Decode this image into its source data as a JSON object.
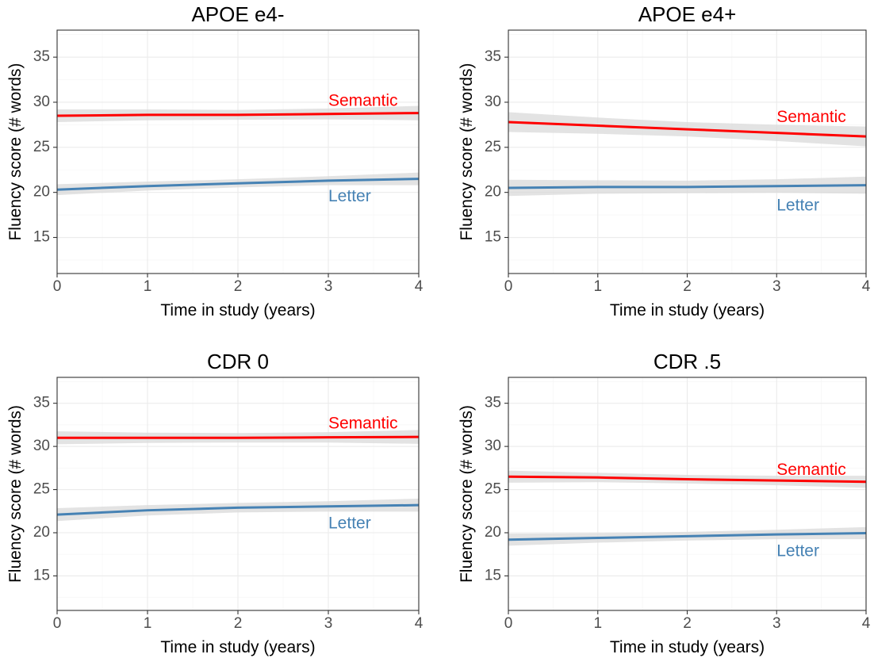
{
  "chart_data": [
    {
      "type": "line",
      "title": "APOE e4-",
      "xlabel": "Time in study (years)",
      "ylabel": "Fluency score (# words)",
      "xlim": [
        0,
        4
      ],
      "ylim": [
        11,
        38
      ],
      "xticks": [
        0,
        1,
        2,
        3,
        4
      ],
      "yticks": [
        15,
        20,
        25,
        30,
        35
      ],
      "grid": true,
      "x": [
        0,
        1,
        2,
        3,
        4
      ],
      "series": [
        {
          "name": "Semantic",
          "color": "#ff0000",
          "values": [
            28.5,
            28.6,
            28.6,
            28.7,
            28.8
          ],
          "ci_halfwidth": [
            0.7,
            0.6,
            0.55,
            0.6,
            0.8
          ],
          "label_at": [
            3.0,
            30.1
          ]
        },
        {
          "name": "Letter",
          "color": "#4682b4",
          "values": [
            20.3,
            20.7,
            21.0,
            21.3,
            21.5
          ],
          "ci_halfwidth": [
            0.6,
            0.5,
            0.45,
            0.5,
            0.7
          ],
          "label_at": [
            3.0,
            19.5
          ]
        }
      ]
    },
    {
      "type": "line",
      "title": "APOE e4+",
      "xlabel": "Time in study (years)",
      "ylabel": "Fluency score (# words)",
      "xlim": [
        0,
        4
      ],
      "ylim": [
        11,
        38
      ],
      "xticks": [
        0,
        1,
        2,
        3,
        4
      ],
      "yticks": [
        15,
        20,
        25,
        30,
        35
      ],
      "grid": true,
      "x": [
        0,
        1,
        2,
        3,
        4
      ],
      "series": [
        {
          "name": "Semantic",
          "color": "#ff0000",
          "values": [
            27.8,
            27.4,
            27.0,
            26.6,
            26.2
          ],
          "ci_halfwidth": [
            1.1,
            0.9,
            0.8,
            0.9,
            1.1
          ],
          "label_at": [
            3.0,
            28.3
          ]
        },
        {
          "name": "Letter",
          "color": "#4682b4",
          "values": [
            20.5,
            20.6,
            20.6,
            20.7,
            20.8
          ],
          "ci_halfwidth": [
            0.9,
            0.75,
            0.7,
            0.75,
            0.95
          ],
          "label_at": [
            3.0,
            18.5
          ]
        }
      ]
    },
    {
      "type": "line",
      "title": "CDR 0",
      "xlabel": "Time in study (years)",
      "ylabel": "Fluency score (# words)",
      "xlim": [
        0,
        4
      ],
      "ylim": [
        11,
        38
      ],
      "xticks": [
        0,
        1,
        2,
        3,
        4
      ],
      "yticks": [
        15,
        20,
        25,
        30,
        35
      ],
      "grid": true,
      "x": [
        0,
        1,
        2,
        3,
        4
      ],
      "series": [
        {
          "name": "Semantic",
          "color": "#ff0000",
          "values": [
            31.0,
            31.0,
            31.0,
            31.05,
            31.1
          ],
          "ci_halfwidth": [
            0.75,
            0.6,
            0.55,
            0.6,
            0.8
          ],
          "label_at": [
            3.0,
            32.6
          ]
        },
        {
          "name": "Letter",
          "color": "#4682b4",
          "values": [
            22.1,
            22.6,
            22.9,
            23.05,
            23.2
          ],
          "ci_halfwidth": [
            0.75,
            0.6,
            0.55,
            0.6,
            0.75
          ],
          "label_at": [
            3.0,
            21.0
          ]
        }
      ]
    },
    {
      "type": "line",
      "title": "CDR .5",
      "xlabel": "Time in study (years)",
      "ylabel": "Fluency score (# words)",
      "xlim": [
        0,
        4
      ],
      "ylim": [
        11,
        38
      ],
      "xticks": [
        0,
        1,
        2,
        3,
        4
      ],
      "yticks": [
        15,
        20,
        25,
        30,
        35
      ],
      "grid": true,
      "x": [
        0,
        1,
        2,
        3,
        4
      ],
      "series": [
        {
          "name": "Semantic",
          "color": "#ff0000",
          "values": [
            26.5,
            26.4,
            26.2,
            26.05,
            25.9
          ],
          "ci_halfwidth": [
            0.7,
            0.55,
            0.5,
            0.55,
            0.7
          ],
          "label_at": [
            3.0,
            27.2
          ]
        },
        {
          "name": "Letter",
          "color": "#4682b4",
          "values": [
            19.2,
            19.4,
            19.6,
            19.8,
            19.95
          ],
          "ci_halfwidth": [
            0.7,
            0.55,
            0.5,
            0.55,
            0.7
          ],
          "label_at": [
            3.0,
            17.8
          ]
        }
      ]
    }
  ]
}
